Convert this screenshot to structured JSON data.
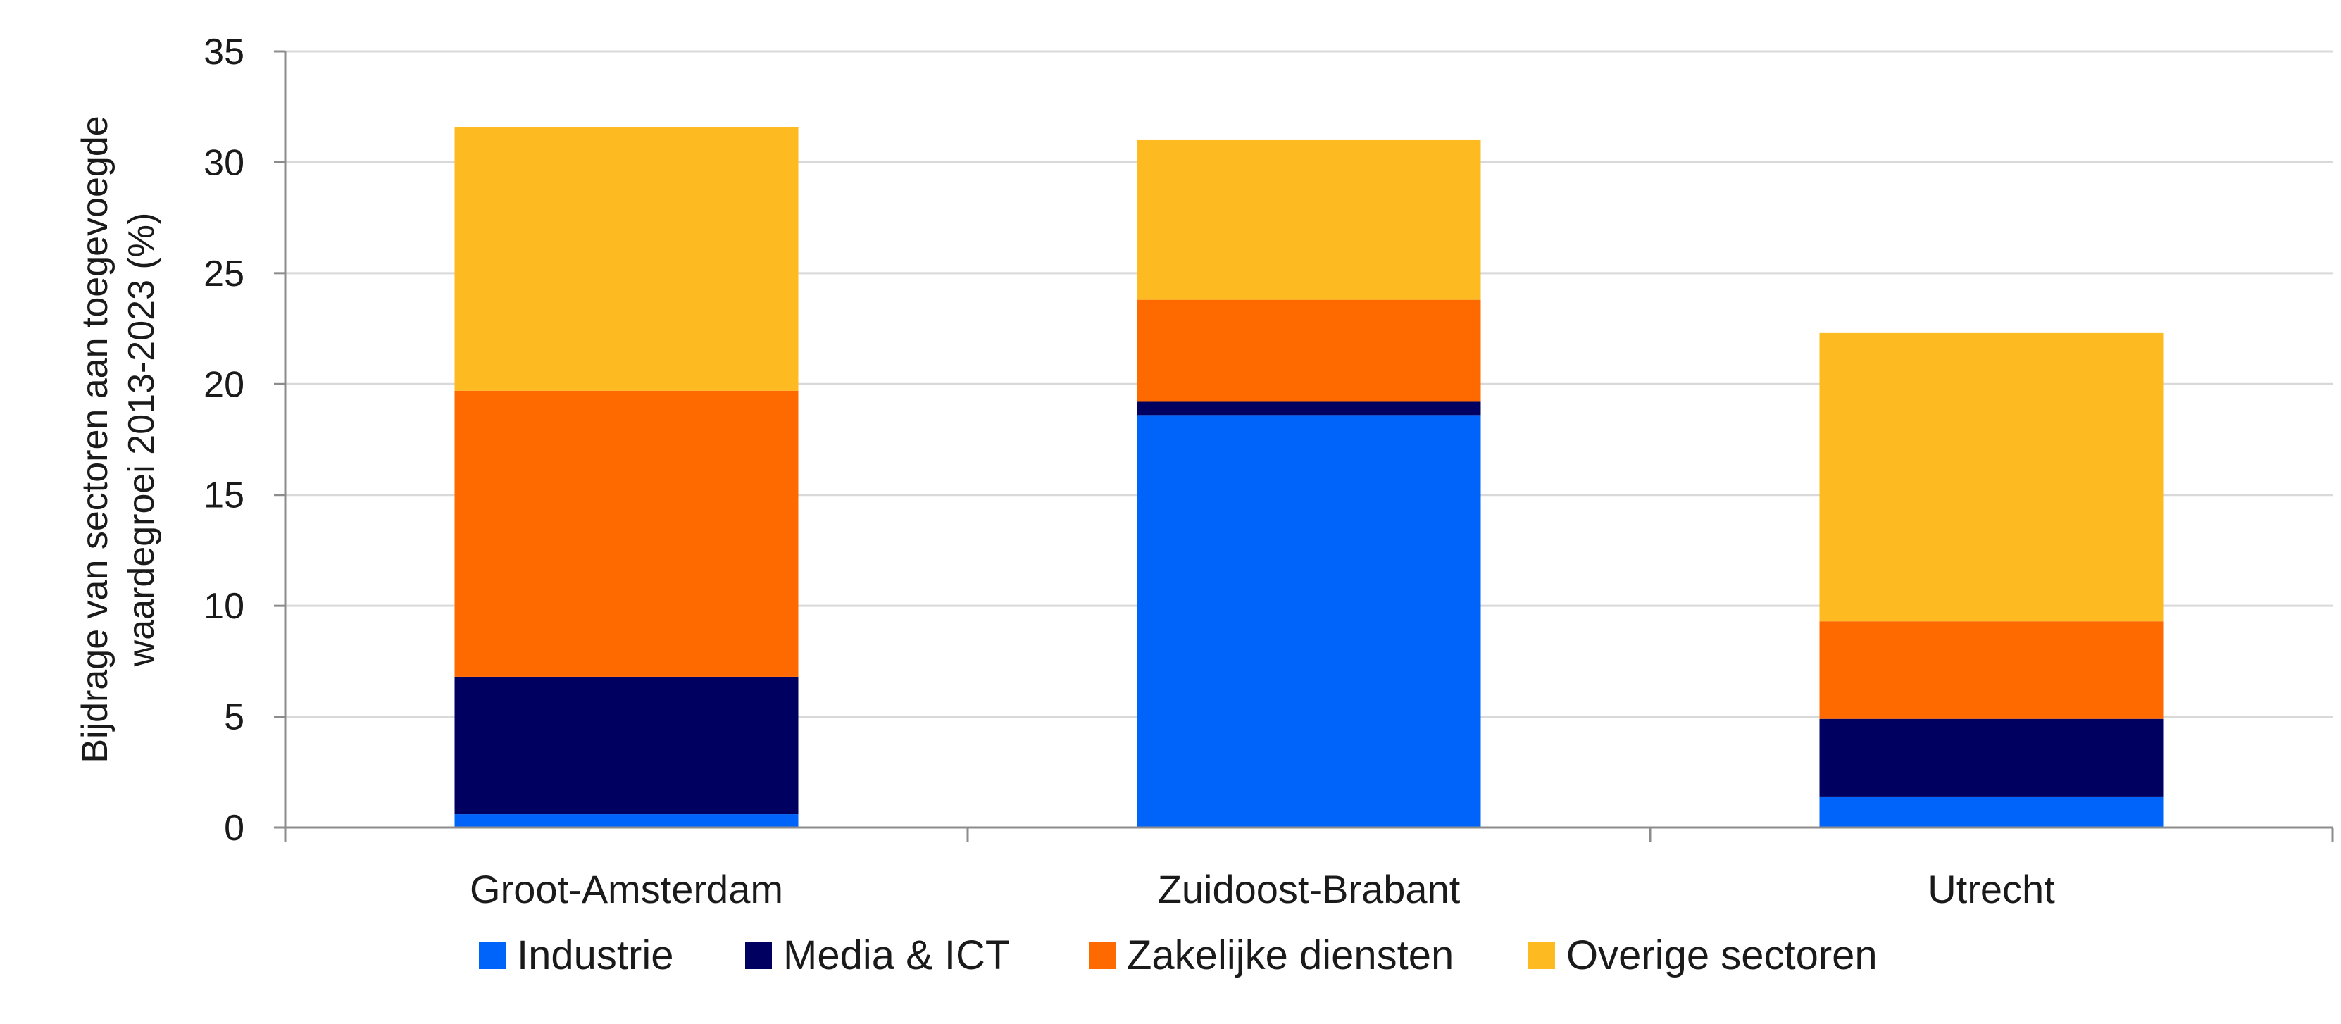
{
  "chart_data": {
    "type": "bar",
    "stacked": true,
    "categories": [
      "Groot-Amsterdam",
      "Zuidoost-Brabant",
      "Utrecht"
    ],
    "series": [
      {
        "name": "Industrie",
        "color": "#0064FA",
        "values": [
          0.6,
          18.6,
          1.4
        ]
      },
      {
        "name": "Media & ICT",
        "color": "#000060",
        "values": [
          6.2,
          0.6,
          3.5
        ]
      },
      {
        "name": "Zakelijke diensten",
        "color": "#FF6A00",
        "values": [
          12.9,
          4.6,
          4.4
        ]
      },
      {
        "name": "Overige sectoren",
        "color": "#FDBA21",
        "values": [
          11.9,
          7.2,
          13.0
        ]
      }
    ],
    "ylabel_lines": [
      "Bijdrage van sectoren aan toegevoegde",
      "waardegroei 2013-2023 (%)"
    ],
    "xlabel": "",
    "title": "",
    "ylim": [
      0,
      35
    ],
    "yticks": [
      0,
      5,
      10,
      15,
      20,
      25,
      30,
      35
    ],
    "grid": true,
    "legend_position": "bottom"
  }
}
